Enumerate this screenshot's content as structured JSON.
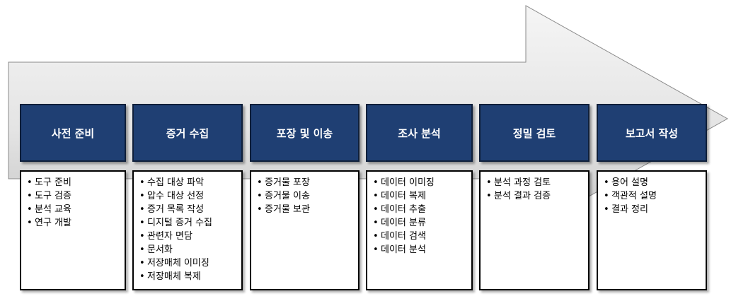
{
  "stages": [
    {
      "title": "사전 준비",
      "items": [
        "도구 준비",
        "도구 검증",
        "분석 교육",
        "연구 개발"
      ]
    },
    {
      "title": "증거 수집",
      "items": [
        "수집 대상 파악",
        "압수 대상 선정",
        "증거 목록 작성",
        "디지털 증거 수집",
        "관련자 면담",
        "문서화",
        "저장매체 이미징",
        "저장매체 복제"
      ]
    },
    {
      "title": "포장 및 이송",
      "items": [
        "증거물 포장",
        "증거물 이송",
        "증거물 보관"
      ]
    },
    {
      "title": "조사 분석",
      "items": [
        "데이터 이미징",
        "데이터 복제",
        "데이터 추출",
        "데이터 분류",
        "데이터 검색",
        "데이터 분석"
      ]
    },
    {
      "title": "정밀 검토",
      "items": [
        "분석 과정 검토",
        "분석 결과 검증"
      ]
    },
    {
      "title": "보고서 작성",
      "items": [
        "용어 설명",
        "객관적 설명",
        "결과 정리"
      ]
    }
  ],
  "colors": {
    "header_bg": "#1f3f73",
    "arrow_light": "#f2f2f2",
    "arrow_dark": "#bfbfbf"
  }
}
